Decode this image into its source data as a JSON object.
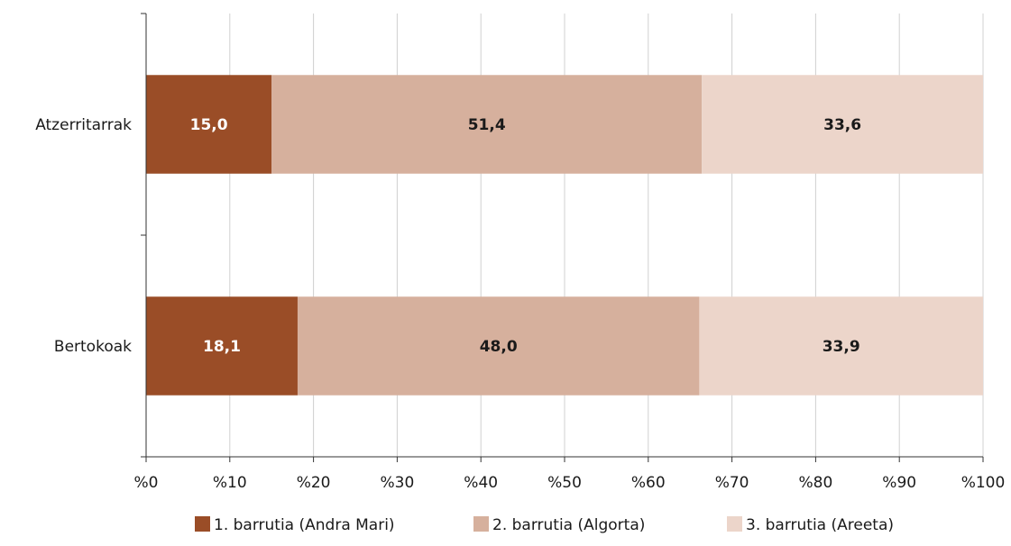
{
  "chart_data": {
    "type": "bar",
    "orientation": "horizontal",
    "stacked": true,
    "percent_stacked": true,
    "categories": [
      "Atzerritarrak",
      "Bertokoak"
    ],
    "series": [
      {
        "name": "1. barrutia (Andra Mari)",
        "values": [
          15.0,
          18.1
        ],
        "labels": [
          "15,0",
          "18,1"
        ],
        "color": "#9a4d27",
        "label_color": "#ffffff"
      },
      {
        "name": "2. barrutia (Algorta)",
        "values": [
          51.4,
          48.0
        ],
        "labels": [
          "51,4",
          "48,0"
        ],
        "color": "#d6b09d",
        "label_color": "#1a1a1a"
      },
      {
        "name": "3. barrutia (Areeta)",
        "values": [
          33.6,
          33.9
        ],
        "labels": [
          "33,6",
          "33,9"
        ],
        "color": "#ecd5ca",
        "label_color": "#1a1a1a"
      }
    ],
    "x_ticks": [
      "%0",
      "%10",
      "%20",
      "%30",
      "%40",
      "%50",
      "%60",
      "%70",
      "%80",
      "%90",
      "%100"
    ],
    "xlim": [
      0,
      100
    ],
    "grid": true,
    "legend_position": "bottom"
  }
}
